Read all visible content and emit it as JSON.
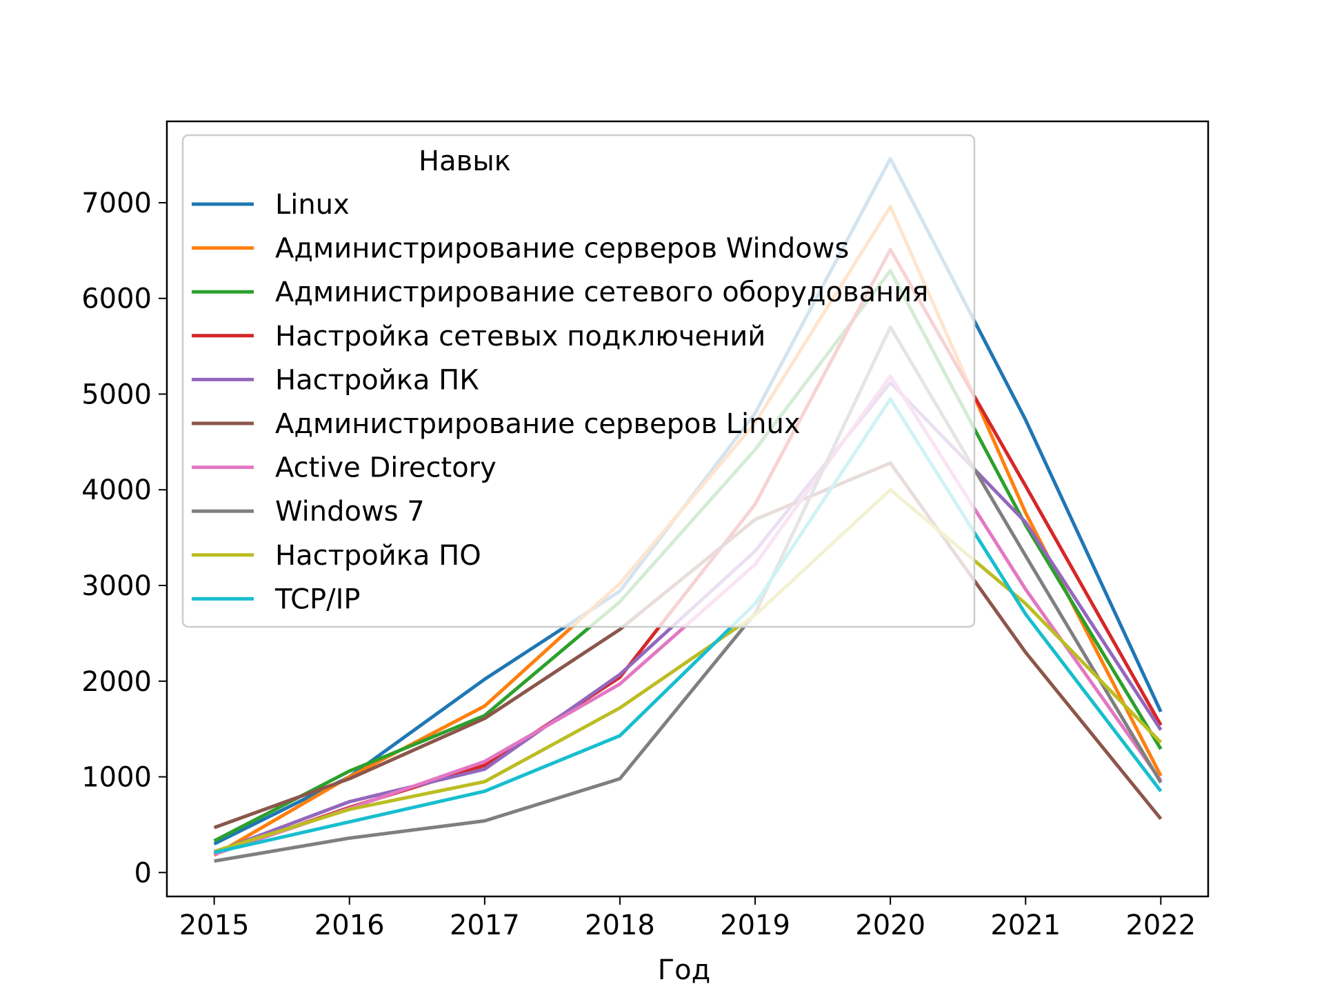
{
  "chart_data": {
    "type": "line",
    "title": "",
    "xlabel": "Год",
    "ylabel": "",
    "x": [
      2015,
      2016,
      2017,
      2018,
      2019,
      2020,
      2021,
      2022
    ],
    "xlim": [
      2014.65,
      2022.35
    ],
    "ylim": [
      -250,
      7850
    ],
    "yticks": [
      0,
      1000,
      2000,
      3000,
      4000,
      5000,
      6000,
      7000
    ],
    "grid": false,
    "legend": {
      "title": "Навык",
      "placement": "upper-left"
    },
    "series": [
      {
        "name": "Linux",
        "color": "#1f77b4",
        "values": [
          300,
          1000,
          2020,
          2940,
          4800,
          7460,
          4730,
          1680
        ]
      },
      {
        "name": "Администрирование серверов Windows",
        "color": "#ff7f0e",
        "values": [
          180,
          1000,
          1740,
          3020,
          4700,
          6960,
          3760,
          1010
        ]
      },
      {
        "name": "Администрирование сетевого оборудования",
        "color": "#2ca02c",
        "values": [
          330,
          1060,
          1640,
          2830,
          4420,
          6290,
          3630,
          1290
        ]
      },
      {
        "name": "Настройка сетевых подключений",
        "color": "#d62728",
        "values": [
          190,
          680,
          1120,
          2040,
          3850,
          6510,
          4040,
          1540
        ]
      },
      {
        "name": "Настройка ПК",
        "color": "#9467bd",
        "values": [
          210,
          740,
          1080,
          2070,
          3360,
          5120,
          3660,
          1490
        ]
      },
      {
        "name": "Администрирование серверов Linux",
        "color": "#8c564b",
        "values": [
          470,
          980,
          1610,
          2540,
          3690,
          4280,
          2300,
          560
        ]
      },
      {
        "name": "Active Directory",
        "color": "#e377c2",
        "values": [
          190,
          670,
          1160,
          1970,
          3220,
          5190,
          2960,
          960
        ]
      },
      {
        "name": "Windows 7",
        "color": "#7f7f7f",
        "values": [
          120,
          360,
          540,
          980,
          2710,
          5700,
          3310,
          940
        ]
      },
      {
        "name": "Настройка ПО",
        "color": "#bcbd22",
        "values": [
          220,
          660,
          950,
          1720,
          2690,
          4000,
          2810,
          1360
        ]
      },
      {
        "name": "TCP/IP",
        "color": "#17becf",
        "values": [
          210,
          530,
          850,
          1430,
          2810,
          4950,
          2700,
          850
        ]
      }
    ]
  }
}
